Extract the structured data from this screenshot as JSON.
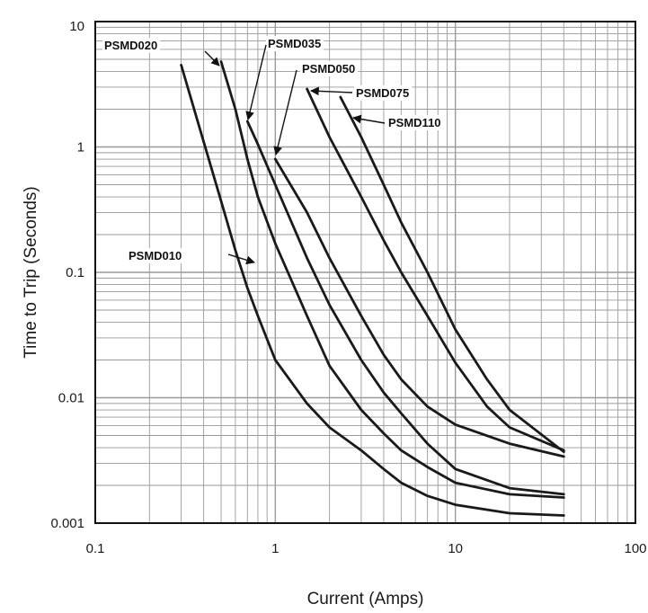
{
  "chart_data": {
    "type": "line",
    "title": "",
    "xlabel": "Current (Amps)",
    "ylabel": "Time to Trip (Seconds)",
    "x_scale": "log",
    "y_scale": "log",
    "xlim": [
      0.1,
      100
    ],
    "ylim": [
      0.001,
      10
    ],
    "x_ticks": [
      "0.1",
      "1",
      "10",
      "100"
    ],
    "y_ticks": [
      "0.001",
      "0.01",
      "0.1",
      "1",
      "10"
    ],
    "grid": true,
    "legend": "inline labels",
    "colors": {
      "line": "#1a1a1a",
      "grid": "#9a9a9a",
      "frame": "#111111"
    },
    "series": [
      {
        "name": "PSMD010",
        "points": [
          [
            0.3,
            4.5
          ],
          [
            0.4,
            1.1
          ],
          [
            0.5,
            0.37
          ],
          [
            0.6,
            0.15
          ],
          [
            0.7,
            0.075
          ],
          [
            0.8,
            0.045
          ],
          [
            1,
            0.02
          ],
          [
            1.5,
            0.009
          ],
          [
            2,
            0.0058
          ],
          [
            3,
            0.0038
          ],
          [
            4,
            0.0027
          ],
          [
            5,
            0.0021
          ],
          [
            7,
            0.00165
          ],
          [
            10,
            0.0014
          ],
          [
            20,
            0.0012
          ],
          [
            40,
            0.00115
          ]
        ]
      },
      {
        "name": "PSMD020",
        "points": [
          [
            0.5,
            4.8
          ],
          [
            0.6,
            2.0
          ],
          [
            0.7,
            0.8
          ],
          [
            0.8,
            0.4
          ],
          [
            1,
            0.17
          ],
          [
            1.5,
            0.045
          ],
          [
            2,
            0.018
          ],
          [
            3,
            0.008
          ],
          [
            4,
            0.0052
          ],
          [
            5,
            0.0038
          ],
          [
            7,
            0.0028
          ],
          [
            10,
            0.0021
          ],
          [
            20,
            0.0017
          ],
          [
            40,
            0.0016
          ]
        ]
      },
      {
        "name": "PSMD035",
        "points": [
          [
            0.7,
            1.6
          ],
          [
            0.8,
            1.05
          ],
          [
            1,
            0.5
          ],
          [
            1.5,
            0.13
          ],
          [
            2,
            0.055
          ],
          [
            3,
            0.02
          ],
          [
            4,
            0.011
          ],
          [
            5,
            0.0075
          ],
          [
            7,
            0.0043
          ],
          [
            10,
            0.0027
          ],
          [
            20,
            0.0019
          ],
          [
            40,
            0.0017
          ]
        ]
      },
      {
        "name": "PSMD050",
        "points": [
          [
            1,
            0.8
          ],
          [
            1.5,
            0.3
          ],
          [
            2,
            0.13
          ],
          [
            3,
            0.045
          ],
          [
            4,
            0.022
          ],
          [
            5,
            0.014
          ],
          [
            7,
            0.0085
          ],
          [
            10,
            0.0061
          ],
          [
            20,
            0.0043
          ],
          [
            40,
            0.0034
          ]
        ]
      },
      {
        "name": "PSMD075",
        "points": [
          [
            1.5,
            2.9
          ],
          [
            2,
            1.2
          ],
          [
            3,
            0.4
          ],
          [
            4,
            0.18
          ],
          [
            5,
            0.1
          ],
          [
            7,
            0.045
          ],
          [
            10,
            0.019
          ],
          [
            15,
            0.0085
          ],
          [
            20,
            0.0058
          ],
          [
            40,
            0.0038
          ]
        ]
      },
      {
        "name": "PSMD110",
        "points": [
          [
            2.3,
            2.5
          ],
          [
            3,
            1.2
          ],
          [
            4,
            0.5
          ],
          [
            5,
            0.25
          ],
          [
            7,
            0.1
          ],
          [
            10,
            0.035
          ],
          [
            15,
            0.014
          ],
          [
            20,
            0.008
          ],
          [
            40,
            0.0037
          ]
        ]
      }
    ]
  }
}
